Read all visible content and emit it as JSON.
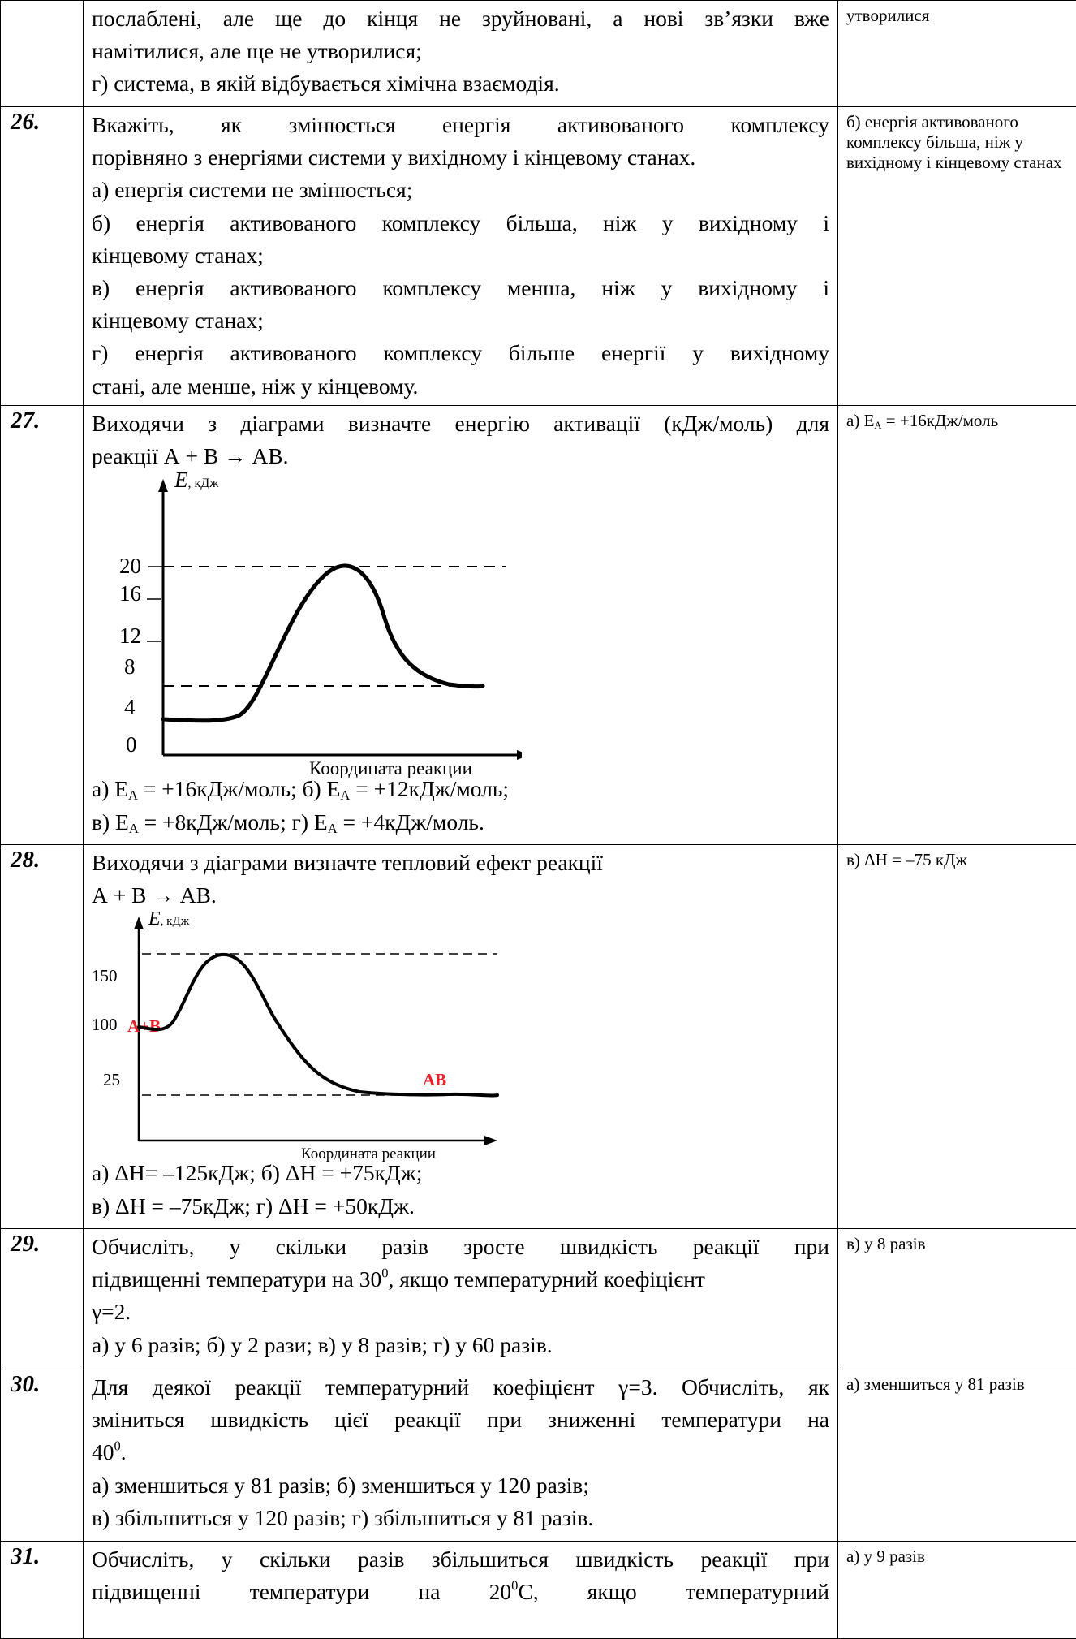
{
  "rows": [
    {
      "num": "",
      "lines": [
        "послаблені, але ще до кінця не зруйновані, а нові зв’язки вже",
        "намітилися, але ще не утворилися;",
        "г) система, в якій відбувається хімічна взаємодія."
      ],
      "answer": "утворилися"
    },
    {
      "num": "26.",
      "lines": [
        "Вкажіть, як змінюється енергія активованого комплексу",
        "порівняно з енергіями системи у вихідному і кінцевому станах.",
        "а) енергія системи не змінюється;",
        "б) енергія активованого комплексу більша, ніж у вихідному і",
        "кінцевому станах;",
        "в) енергія активованого комплексу менша, ніж у вихідному і",
        "кінцевому станах;",
        "г) енергія активованого комплексу більше енергії у вихідному",
        "стані, але менше, ніж у кінцевому."
      ],
      "answer": "б) енергія активованого комплексу більша, ніж у вихідному і кінцевому станах"
    },
    {
      "num": "27.",
      "line1": "Виходячи з діаграми визначте енергію активації (кДж/моль) для",
      "line2": "реакції А + В → АВ.",
      "diagram": {
        "y_label": "E",
        "y_unit": ", кДж",
        "ticks": [
          "20",
          "16",
          "12",
          "8",
          "4",
          "0"
        ],
        "x_label": "Координата реакции"
      },
      "options_line1": [
        "а) E",
        "A",
        " = +16кДж/моль; б) E",
        "A",
        " = +12кДж/моль;"
      ],
      "options_line2": [
        "в) E",
        "A",
        " = +8кДж/моль; г) E",
        "A",
        " = +4кДж/моль."
      ],
      "answer": [
        "а) E",
        "A",
        " = +16кДж/моль"
      ]
    },
    {
      "num": "28.",
      "line1": "Виходячи з діаграми визначте тепловий ефект реакції",
      "line2": "А + В → АВ.",
      "diagram": {
        "y_label": "E",
        "y_unit": ", кДж",
        "ticks": [
          "150",
          "100",
          "25"
        ],
        "reactant_label": "A+B",
        "product_label": "AB",
        "x_label": "Координата реакции"
      },
      "options_line1": "а) ΔН= –125кДж; б) ΔН = +75кДж;",
      "options_line2": "в) ΔН = –75кДж; г) ΔН = +50кДж.",
      "answer": "в) ΔН = –75 кДж"
    },
    {
      "num": "29.",
      "line1": "Обчисліть, у скільки разів зросте швидкість реакції при",
      "line2": [
        "підвищенні температури на 30",
        "0",
        ", якщо температурний коефіцієнт"
      ],
      "line3": "γ=2.",
      "line4": "а) у 6 разів; б) у 2 рази; в) у 8 разів; г) у 60 разів.",
      "answer": "в) у 8 разів"
    },
    {
      "num": "30.",
      "line1": "Для деякої реакції температурний коефіцієнт γ=3. Обчисліть, як",
      "line2": "зміниться швидкість цієї реакції при зниженні температури на",
      "line3": [
        "40",
        "0",
        "."
      ],
      "line4": "а) зменшиться у 81 разів; б) зменшиться у 120 разів;",
      "line5": "в) збільшиться у 120 разів; г) збільшиться у 81 разів.",
      "answer": "а) зменшиться у 81 разів"
    },
    {
      "num": "31.",
      "line1": "Обчисліть, у скільки разів збільшиться швидкість реакції при",
      "line2": [
        "підвищенні температури на 20",
        "0",
        "С, якщо температурний"
      ],
      "answer": "а) у 9 разів"
    }
  ],
  "colors": {
    "border": "#000000",
    "text": "#000000",
    "chart_label_red": "#e8202a"
  }
}
